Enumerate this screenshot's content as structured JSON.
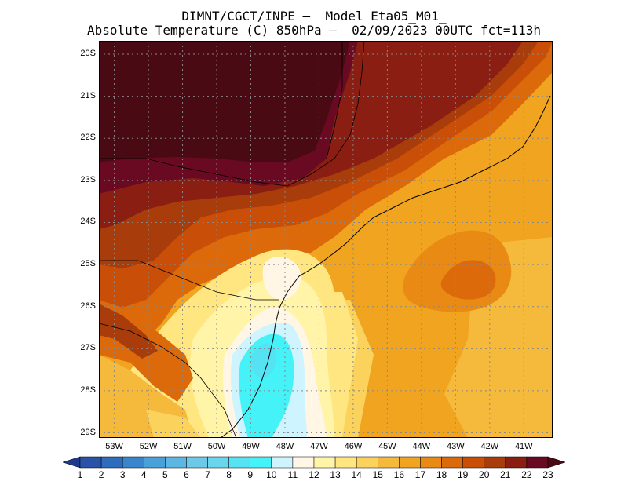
{
  "title_line1": "DIMNT/CGCT/INPE –  Model Eta05_M01_",
  "title_line2": "Absolute Temperature (C) 850hPa –  02/09/2023 00UTC fct=113h",
  "lat_labels": [
    "20S",
    "21S",
    "22S",
    "23S",
    "24S",
    "25S",
    "26S",
    "27S",
    "28S",
    "29S"
  ],
  "lon_labels": [
    "53W",
    "52W",
    "51W",
    "50W",
    "49W",
    "48W",
    "47W",
    "46W",
    "45W",
    "44W",
    "43W",
    "42W",
    "41W"
  ],
  "colorbar": {
    "labels": [
      "1",
      "2",
      "3",
      "4",
      "5",
      "6",
      "7",
      "8",
      "9",
      "10",
      "11",
      "12",
      "13",
      "14",
      "15",
      "16",
      "17",
      "18",
      "19",
      "20",
      "21",
      "22",
      "23"
    ],
    "colors": [
      "#1e3c8c",
      "#2a52a8",
      "#2f6cbd",
      "#3a86cc",
      "#4aa0d8",
      "#5cb8e2",
      "#6ccae8",
      "#6ad6ee",
      "#55e3f3",
      "#44f2f7",
      "#cdf4ff",
      "#fff6e6",
      "#fff4a8",
      "#ffe680",
      "#fad25c",
      "#f5b93c",
      "#f0a420",
      "#e88a14",
      "#dc6a0a",
      "#c94f08",
      "#a83c0a",
      "#8a1e12",
      "#6a0a22",
      "#4a0a14"
    ]
  },
  "map": {
    "lat_range": [
      20,
      29.4
    ],
    "lon_range": [
      53.75,
      40.5
    ],
    "colors": {
      "c9": "#55e3f3",
      "c10": "#44f2f7",
      "c11": "#cdf4ff",
      "c12": "#fff6e6",
      "c13": "#fff4a8",
      "c14": "#ffe680",
      "c15": "#fad25c",
      "c16": "#f5b93c",
      "c17": "#f0a420",
      "c18": "#e88a14",
      "c19": "#dc6a0a",
      "c20": "#c94f08",
      "c21": "#a83c0a",
      "c22": "#8a1e12",
      "c23": "#6a0a22",
      "c24": "#4a0a14"
    }
  }
}
